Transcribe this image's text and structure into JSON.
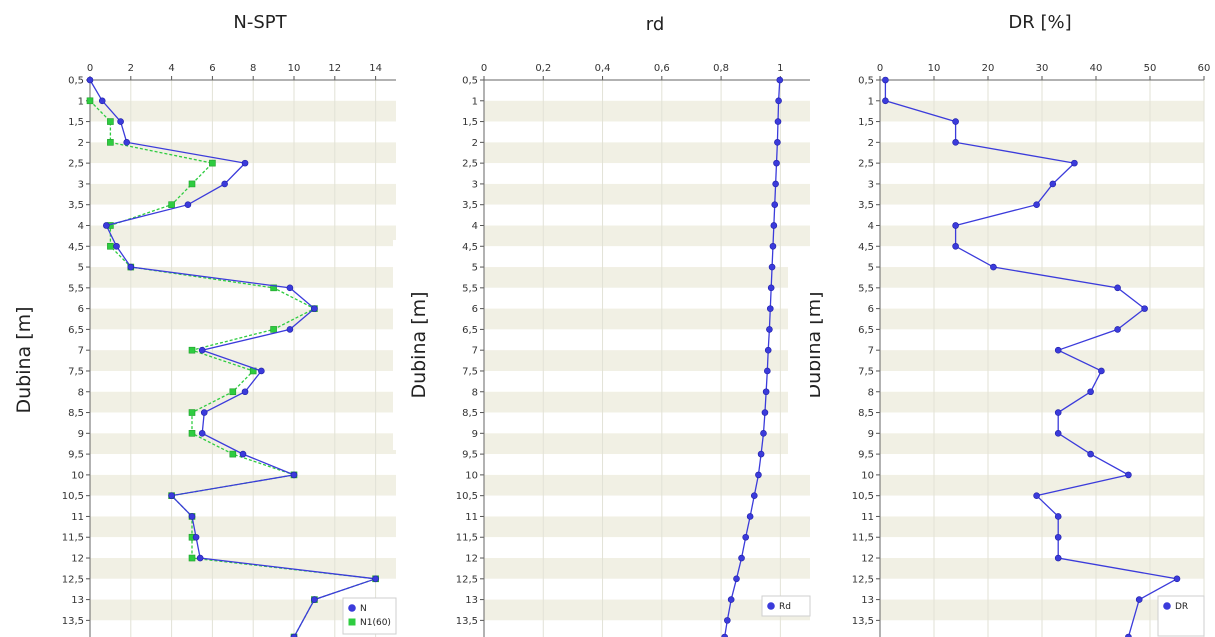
{
  "chart_data": [
    {
      "type": "line",
      "title": "N-SPT",
      "ylabel": "Dubina [m]",
      "xlim": [
        0,
        15
      ],
      "ylim": [
        0.5,
        13.9
      ],
      "xticks": [
        "0",
        "2",
        "4",
        "6",
        "8",
        "10",
        "12",
        "14"
      ],
      "yticks": [
        "0,5",
        "1",
        "1,5",
        "2",
        "2,5",
        "3",
        "3,5",
        "4",
        "4,5",
        "5",
        "5,5",
        "6",
        "6,5",
        "7",
        "7,5",
        "8",
        "8,5",
        "9",
        "9,5",
        "10",
        "10,5",
        "11",
        "11,5",
        "12",
        "12,5",
        "13",
        "13,5"
      ],
      "legend_position": "bottom-right",
      "series": [
        {
          "name": "N",
          "color": "#3b3bdb",
          "marker": "circle",
          "points": [
            [
              0,
              0.5
            ],
            [
              0.6,
              1
            ],
            [
              1.5,
              1.5
            ],
            [
              1.8,
              2
            ],
            [
              7.6,
              2.5
            ],
            [
              6.6,
              3
            ],
            [
              4.8,
              3.5
            ],
            [
              0.8,
              4
            ],
            [
              1.3,
              4.5
            ],
            [
              2,
              5
            ],
            [
              9.8,
              5.5
            ],
            [
              11,
              6
            ],
            [
              9.8,
              6.5
            ],
            [
              5.5,
              7
            ],
            [
              8.4,
              7.5
            ],
            [
              7.6,
              8
            ],
            [
              5.6,
              8.5
            ],
            [
              5.5,
              9
            ],
            [
              7.5,
              9.5
            ],
            [
              10,
              10
            ],
            [
              4,
              10.5
            ],
            [
              5,
              11
            ],
            [
              5.2,
              11.5
            ],
            [
              5.4,
              12
            ],
            [
              14,
              12.5
            ],
            [
              11,
              13
            ],
            [
              10,
              13.9
            ]
          ]
        },
        {
          "name": "N1(60)",
          "color": "#2ecc40",
          "marker": "square",
          "points": [
            [
              0,
              1
            ],
            [
              1,
              1.5
            ],
            [
              1,
              2
            ],
            [
              6,
              2.5
            ],
            [
              5,
              3
            ],
            [
              4,
              3.5
            ],
            [
              1,
              4
            ],
            [
              1,
              4.5
            ],
            [
              2,
              5
            ],
            [
              9,
              5.5
            ],
            [
              11,
              6
            ],
            [
              9,
              6.5
            ],
            [
              5,
              7
            ],
            [
              8,
              7.5
            ],
            [
              7,
              8
            ],
            [
              5,
              8.5
            ],
            [
              5,
              9
            ],
            [
              7,
              9.5
            ],
            [
              10,
              10
            ],
            [
              4,
              10.5
            ],
            [
              5,
              11
            ],
            [
              5,
              11.5
            ],
            [
              5,
              12
            ],
            [
              14,
              12.5
            ],
            [
              11,
              13
            ],
            [
              10,
              13.9
            ]
          ]
        }
      ]
    },
    {
      "type": "line",
      "title": "rd",
      "ylabel": "Dubina [m]",
      "xlim": [
        0,
        1.1
      ],
      "ylim": [
        0.5,
        13.9
      ],
      "xticks": [
        "0",
        "0,2",
        "0,4",
        "0,6",
        "0,8",
        "1"
      ],
      "yticks": [
        "0,5",
        "1",
        "1,5",
        "2",
        "2,5",
        "3",
        "3,5",
        "4",
        "4,5",
        "5",
        "5,5",
        "6",
        "6,5",
        "7",
        "7,5",
        "8",
        "8,5",
        "9",
        "9,5",
        "10",
        "10,5",
        "11",
        "11,5",
        "12",
        "12,5",
        "13",
        "13,5"
      ],
      "legend_position": "bottom-right",
      "series": [
        {
          "name": "Rd",
          "color": "#3b3bdb",
          "marker": "circle",
          "points": [
            [
              0.998,
              0.5
            ],
            [
              0.994,
              1
            ],
            [
              0.992,
              1.5
            ],
            [
              0.99,
              2
            ],
            [
              0.987,
              2.5
            ],
            [
              0.984,
              3
            ],
            [
              0.981,
              3.5
            ],
            [
              0.978,
              4
            ],
            [
              0.975,
              4.5
            ],
            [
              0.972,
              5
            ],
            [
              0.969,
              5.5
            ],
            [
              0.966,
              6
            ],
            [
              0.963,
              6.5
            ],
            [
              0.959,
              7
            ],
            [
              0.956,
              7.5
            ],
            [
              0.952,
              8
            ],
            [
              0.948,
              8.5
            ],
            [
              0.943,
              9
            ],
            [
              0.935,
              9.5
            ],
            [
              0.926,
              10
            ],
            [
              0.912,
              10.5
            ],
            [
              0.898,
              11
            ],
            [
              0.883,
              11.5
            ],
            [
              0.869,
              12
            ],
            [
              0.852,
              12.5
            ],
            [
              0.834,
              13
            ],
            [
              0.821,
              13.5
            ],
            [
              0.812,
              13.9
            ]
          ]
        }
      ]
    },
    {
      "type": "line",
      "title": "DR [%]",
      "ylabel": "Dubina [m]",
      "xlim": [
        0,
        60
      ],
      "ylim": [
        0.5,
        13.9
      ],
      "xticks": [
        "0",
        "10",
        "20",
        "30",
        "40",
        "50",
        "60"
      ],
      "yticks": [
        "0,5",
        "1",
        "1,5",
        "2",
        "2,5",
        "3",
        "3,5",
        "4",
        "4,5",
        "5",
        "5,5",
        "6",
        "6,5",
        "7",
        "7,5",
        "8",
        "8,5",
        "9",
        "9,5",
        "10",
        "10,5",
        "11",
        "11,5",
        "12",
        "12,5",
        "13",
        "13,5"
      ],
      "legend_position": "bottom-right",
      "series": [
        {
          "name": "DR",
          "color": "#3b3bdb",
          "marker": "circle",
          "points": [
            [
              1,
              0.5
            ],
            [
              1,
              1
            ],
            [
              14,
              1.5
            ],
            [
              14,
              2
            ],
            [
              36,
              2.5
            ],
            [
              32,
              3
            ],
            [
              29,
              3.5
            ],
            [
              14,
              4
            ],
            [
              14,
              4.5
            ],
            [
              21,
              5
            ],
            [
              44,
              5.5
            ],
            [
              49,
              6
            ],
            [
              44,
              6.5
            ],
            [
              33,
              7
            ],
            [
              41,
              7.5
            ],
            [
              39,
              8
            ],
            [
              33,
              8.5
            ],
            [
              33,
              9
            ],
            [
              39,
              9.5
            ],
            [
              46,
              10
            ],
            [
              29,
              10.5
            ],
            [
              33,
              11
            ],
            [
              33,
              11.5
            ],
            [
              33,
              12
            ],
            [
              55,
              12.5
            ],
            [
              48,
              13
            ],
            [
              46,
              13.9
            ]
          ]
        }
      ]
    }
  ]
}
